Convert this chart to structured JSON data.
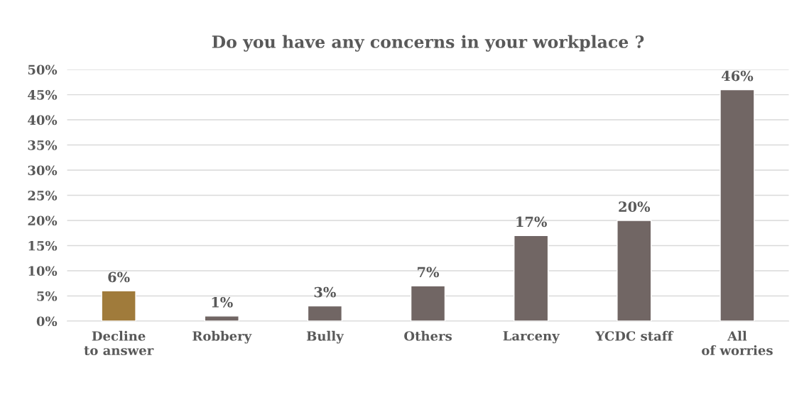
{
  "chart_data": {
    "type": "bar",
    "title": "Do you have any concerns in your workplace ?",
    "categories": [
      "Decline to answer",
      "Robbery",
      "Bully",
      "Others",
      "Larceny",
      "YCDC staff",
      "All of worries"
    ],
    "values": [
      6,
      1,
      3,
      7,
      17,
      20,
      46
    ],
    "colors": [
      "#a07b3b",
      "#716664",
      "#716664",
      "#716664",
      "#716664",
      "#716664",
      "#716664"
    ],
    "value_labels": [
      "6%",
      "1%",
      "3%",
      "7%",
      "17%",
      "20%",
      "46%"
    ],
    "ylim": [
      0,
      50
    ],
    "yticks": [
      {
        "value": 0,
        "label": "0%"
      },
      {
        "value": 5,
        "label": "5%"
      },
      {
        "value": 10,
        "label": "10%"
      },
      {
        "value": 15,
        "label": "15%"
      },
      {
        "value": 20,
        "label": "20%"
      },
      {
        "value": 25,
        "label": "25%"
      },
      {
        "value": 30,
        "label": "30%"
      },
      {
        "value": 35,
        "label": "35%"
      },
      {
        "value": 40,
        "label": "40%"
      },
      {
        "value": 45,
        "label": "45%"
      },
      {
        "value": 50,
        "label": "50%"
      }
    ],
    "grid": "y"
  }
}
